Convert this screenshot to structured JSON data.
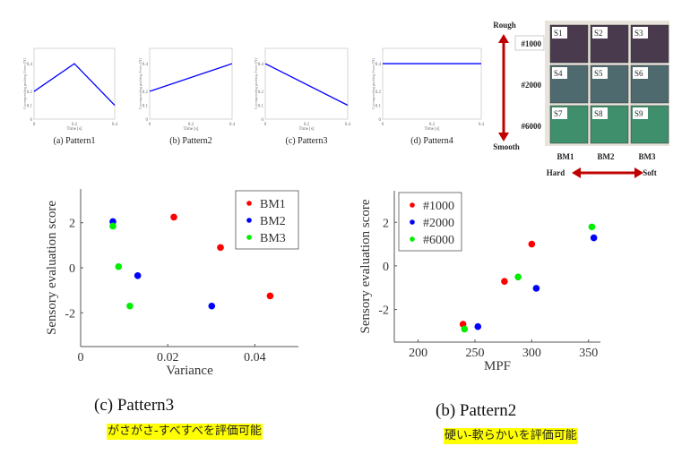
{
  "pattern_plots": [
    {
      "caption": "(a) Pattern1",
      "points": [
        [
          0,
          0.2
        ],
        [
          0.2,
          0.4
        ],
        [
          0.4,
          0.1
        ]
      ]
    },
    {
      "caption": "(b) Pattern2",
      "points": [
        [
          0,
          0.2
        ],
        [
          0.4,
          0.4
        ]
      ]
    },
    {
      "caption": "(c) Pattern3",
      "points": [
        [
          0,
          0.4
        ],
        [
          0.4,
          0.1
        ]
      ]
    },
    {
      "caption": "(d) Pattern4",
      "points": [
        [
          0,
          0.4
        ],
        [
          0.4,
          0.4
        ]
      ]
    }
  ],
  "pattern_axes": {
    "xlabel": "Time [s]",
    "ylabel": "Corresponding pushing Force [N]",
    "xticks": [
      "0",
      "0.2",
      "0.4"
    ],
    "yticks": [
      "0",
      "0.1",
      "0.2",
      "0.4"
    ],
    "xlim": [
      0,
      0.4
    ],
    "ylim": [
      0,
      0.5
    ],
    "line_color": "#0000ff"
  },
  "samples": {
    "rough_label": "Rough",
    "smooth_label": "Smooth",
    "hard_label": "Hard",
    "soft_label": "Soft",
    "rows": [
      "#1000",
      "#2000",
      "#6000"
    ],
    "columns": [
      "BM1",
      "BM2",
      "BM3"
    ],
    "cells": [
      "S1",
      "S2",
      "S3",
      "S4",
      "S5",
      "S6",
      "S7",
      "S8",
      "S9"
    ],
    "row_colors": [
      "#4a3a4e",
      "#4f6a6e",
      "#3f8f6c"
    ],
    "arrow_color": "#c00000"
  },
  "chart_data": [
    {
      "type": "scatter",
      "xlabel": "Variance",
      "ylabel": "Sensory evaluation score",
      "xlim": [
        0,
        0.05
      ],
      "ylim": [
        -3.5,
        3.5
      ],
      "xticks": [
        0,
        0.02,
        0.04
      ],
      "xtick_labels": [
        "0",
        "0.02",
        "0.04"
      ],
      "yticks": [
        -2,
        0,
        2
      ],
      "ytick_labels": [
        "-2",
        "0",
        "2"
      ],
      "legend": "top-right",
      "caption": "(c) Pattern3",
      "note": "がさがさ-すべすべを評価可能",
      "series": [
        {
          "name": "BM1",
          "color": "#ff0000",
          "points": [
            [
              0.0214,
              2.25
            ],
            [
              0.0321,
              0.9
            ],
            [
              0.0435,
              -1.25
            ]
          ]
        },
        {
          "name": "BM2",
          "color": "#0000ff",
          "points": [
            [
              0.0074,
              2.05
            ],
            [
              0.0131,
              -0.35
            ],
            [
              0.0301,
              -1.7
            ]
          ]
        },
        {
          "name": "BM3",
          "color": "#00ee00",
          "points": [
            [
              0.0074,
              1.85
            ],
            [
              0.0087,
              0.05
            ],
            [
              0.0113,
              -1.7
            ]
          ]
        }
      ]
    },
    {
      "type": "scatter",
      "xlabel": "MPF",
      "ylabel": "Sensory evaluation score",
      "xlim": [
        179,
        360.5
      ],
      "ylim": [
        -3.5,
        3.45
      ],
      "xticks": [
        200,
        250,
        300,
        350
      ],
      "xtick_labels": [
        "200",
        "250",
        "300",
        "350"
      ],
      "yticks": [
        -2,
        0,
        2
      ],
      "ytick_labels": [
        "-2",
        "0",
        "2"
      ],
      "legend": "top-left",
      "caption": "(b) Pattern2",
      "note": "硬い-軟らかいを評価可能",
      "series": [
        {
          "name": "#1000",
          "color": "#ff0000",
          "points": [
            [
              239.5,
              -2.68
            ],
            [
              276,
              -0.71
            ],
            [
              300,
              1.0
            ]
          ]
        },
        {
          "name": "#2000",
          "color": "#0000ff",
          "points": [
            [
              252.6,
              -2.79
            ],
            [
              304,
              -1.03
            ],
            [
              354.7,
              1.29
            ]
          ]
        },
        {
          "name": "#6000",
          "color": "#00ee00",
          "points": [
            [
              240.8,
              -2.9
            ],
            [
              288,
              -0.51
            ],
            [
              353,
              1.79
            ]
          ]
        }
      ]
    }
  ]
}
